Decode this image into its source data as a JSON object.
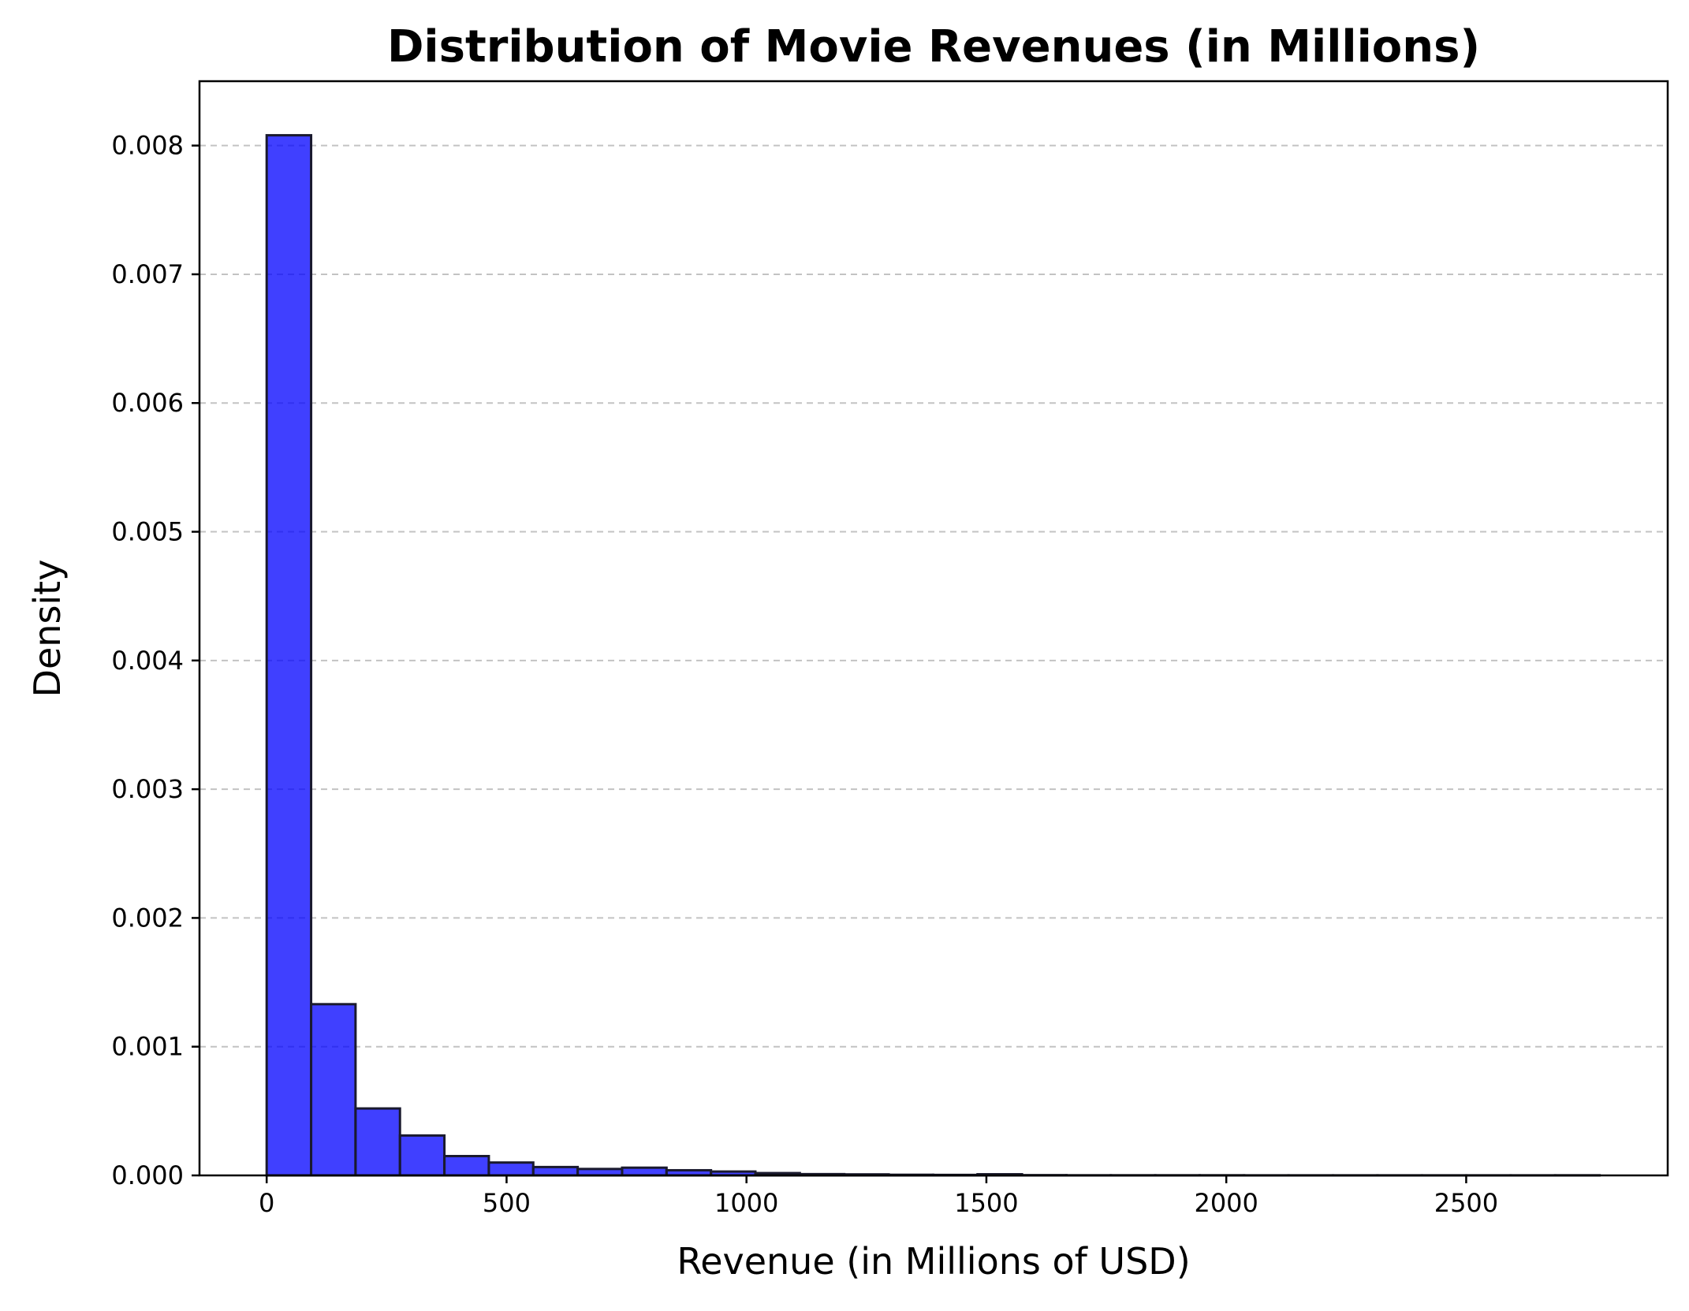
{
  "chart_data": {
    "type": "bar",
    "subtype": "histogram",
    "title": "Distribution of Movie Revenues (in Millions)",
    "xlabel": "Revenue (in Millions of USD)",
    "ylabel": "Density",
    "xlim": [
      -140,
      2920
    ],
    "ylim": [
      0,
      0.0085
    ],
    "xticks": [
      0,
      500,
      1000,
      1500,
      2000,
      2500
    ],
    "xtick_labels": [
      "0",
      "500",
      "1000",
      "1500",
      "2000",
      "2500"
    ],
    "yticks": [
      0.0,
      0.001,
      0.002,
      0.003,
      0.004,
      0.005,
      0.006,
      0.007,
      0.008
    ],
    "ytick_labels": [
      "0.000",
      "0.001",
      "0.002",
      "0.003",
      "0.004",
      "0.005",
      "0.006",
      "0.007",
      "0.008"
    ],
    "grid": "y-dashed",
    "bar_color": "#0000ff",
    "bar_alpha": 0.75,
    "edge_color": "#1a1a2e",
    "bin_edges": [
      0,
      92.6,
      185.2,
      277.8,
      370.4,
      463,
      555.6,
      648.2,
      740.8,
      833.4,
      926,
      1018.6,
      1111.2,
      1203.8,
      1296.4,
      1389,
      1481.6,
      1574.2,
      1666.8,
      1759.4,
      1852,
      1944.6,
      2037.2,
      2129.8,
      2222.4,
      2315,
      2407.6,
      2500.2,
      2592.8,
      2685.4,
      2778
    ],
    "values": [
      0.00808,
      0.00133,
      0.00052,
      0.00031,
      0.00015,
      0.0001,
      6.5e-05,
      5e-05,
      6e-05,
      4e-05,
      3e-05,
      1.8e-05,
      1e-05,
      8e-06,
      5e-06,
      4e-06,
      9e-06,
      2e-06,
      1e-06,
      1e-06,
      1e-06,
      1e-06,
      5e-07,
      5e-07,
      5e-07,
      5e-07,
      5e-07,
      5e-07,
      5e-07,
      8e-07
    ]
  }
}
